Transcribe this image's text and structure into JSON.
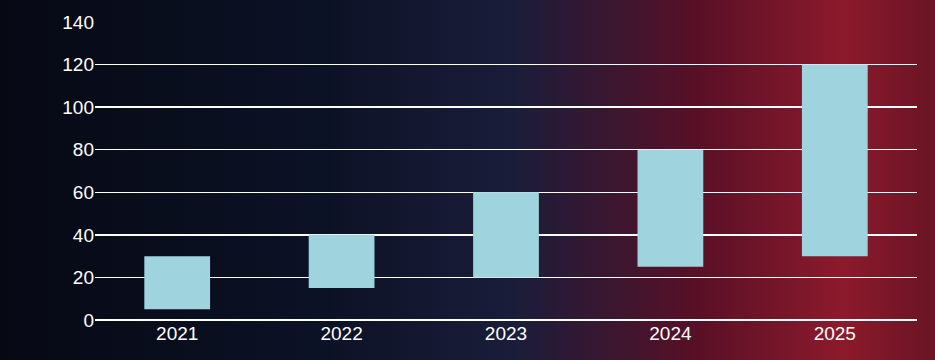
{
  "chart_data": {
    "type": "bar",
    "categories": [
      "2021",
      "2022",
      "2023",
      "2024",
      "2025"
    ],
    "base": [
      5,
      15,
      20,
      25,
      30
    ],
    "values": [
      25,
      25,
      40,
      55,
      90
    ],
    "color": "#9fd3dd",
    "ylim": [
      0,
      140
    ],
    "yticks": [
      0,
      20,
      40,
      60,
      80,
      100,
      120,
      140
    ],
    "grid": true
  }
}
